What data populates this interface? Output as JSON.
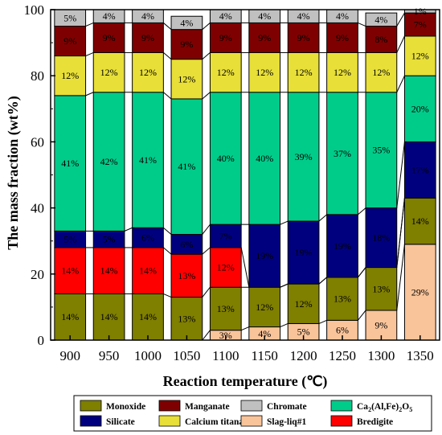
{
  "chart_data": {
    "type": "bar",
    "stacked": true,
    "xlabel": "Reaction temperature (℃)",
    "ylabel": "The mass fraction (wt%)",
    "ylim": [
      0,
      100
    ],
    "yticks": [
      0,
      20,
      40,
      60,
      80,
      100
    ],
    "categories": [
      "900",
      "950",
      "1000",
      "1050",
      "1100",
      "1150",
      "1200",
      "1250",
      "1300",
      "1350"
    ],
    "grid": false,
    "legend_position": "bottom",
    "series": [
      {
        "name": "Slag-liq#1",
        "color": "#f9c49a",
        "values": [
          0,
          0,
          0,
          0,
          3,
          4,
          5,
          6,
          9,
          29
        ]
      },
      {
        "name": "Monoxide",
        "color": "#7f7f00",
        "values": [
          14,
          14,
          14,
          13,
          13,
          12,
          12,
          13,
          13,
          14
        ]
      },
      {
        "name": "Bredigite",
        "color": "#ff0000",
        "values": [
          14,
          14,
          14,
          13,
          12,
          0,
          0,
          0,
          0,
          0
        ]
      },
      {
        "name": "Silicate",
        "color": "#00007f",
        "values": [
          5,
          5,
          6,
          6,
          7,
          19,
          19,
          19,
          18,
          17
        ]
      },
      {
        "name": "Ca2(Al,Fe)2O5",
        "color": "#00cc8a",
        "values": [
          41,
          42,
          41,
          41,
          40,
          40,
          39,
          37,
          35,
          20
        ]
      },
      {
        "name": "Calcium titanate",
        "color": "#e8df38",
        "values": [
          12,
          12,
          12,
          12,
          12,
          12,
          12,
          12,
          12,
          12
        ]
      },
      {
        "name": "Manganate",
        "color": "#7f0000",
        "values": [
          9,
          9,
          9,
          9,
          9,
          9,
          9,
          9,
          8,
          7
        ]
      },
      {
        "name": "Chromate",
        "color": "#c0c0c0",
        "values": [
          5,
          4,
          4,
          4,
          4,
          4,
          4,
          4,
          4,
          1
        ]
      }
    ],
    "label_colors": {
      "Silicate": "#ffffff"
    },
    "legend_order": [
      "Monoxide",
      "Manganate",
      "Chromate",
      "Ca2(Al,Fe)2O5",
      "Silicate",
      "Calcium titanate",
      "Slag-liq#1",
      "Bredigite"
    ]
  }
}
